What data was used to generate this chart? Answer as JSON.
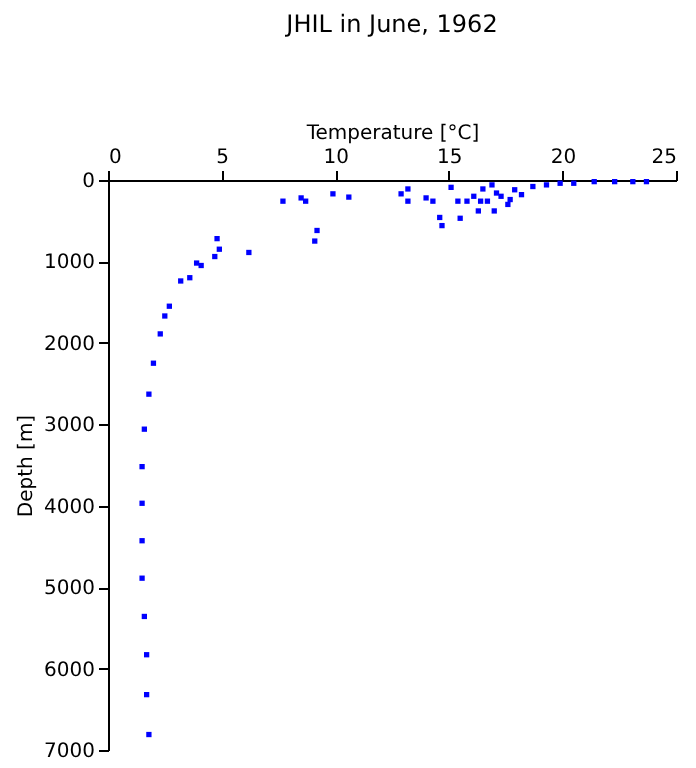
{
  "chart_data": {
    "type": "scatter",
    "title": "JHIL in June, 1962",
    "xlabel": "Temperature [°C]",
    "ylabel": "Depth [m]",
    "x": [
      1.8,
      1.7,
      1.7,
      1.6,
      1.5,
      1.5,
      1.5,
      1.5,
      1.6,
      1.8,
      2,
      2.3,
      2.5,
      2.7,
      3.2,
      3.6,
      3.9,
      4.1,
      4.7,
      4.8,
      4.9,
      6.2,
      7.7,
      8.5,
      8.7,
      9.1,
      9.2,
      9.9,
      10.6,
      12.9,
      13.2,
      13.2,
      14,
      14.3,
      14.6,
      14.7,
      15.1,
      15.5,
      15.4,
      16.3,
      17,
      16.5,
      16.9,
      16.7,
      17.6,
      17.9,
      18.2,
      18.7,
      19.3,
      19.9,
      20.5,
      21.4,
      22.3,
      23.1,
      23.7,
      17.3,
      16.4,
      17.7,
      17.1,
      16.1,
      15.8
    ],
    "series": [
      {
        "color": "#0000ff",
        "values": [
          6810,
          6320,
          5830,
          5360,
          4890,
          4430,
          3970,
          3520,
          3060,
          2630,
          2250,
          1890,
          1670,
          1550,
          1240,
          1200,
          1020,
          1050,
          940,
          720,
          850,
          890,
          260,
          220,
          260,
          750,
          620,
          170,
          210,
          170,
          260,
          110,
          220,
          260,
          460,
          560,
          90,
          470,
          260,
          380,
          380,
          110,
          60,
          260,
          300,
          120,
          180,
          80,
          60,
          40,
          40,
          20,
          20,
          20,
          20,
          200,
          260,
          240,
          160,
          200,
          260
        ]
      }
    ],
    "xlim": [
      0,
      25
    ],
    "xticks": [
      0,
      5,
      10,
      15,
      20,
      25
    ],
    "ylim": [
      7000,
      0
    ],
    "yticks": [
      0,
      1000,
      2000,
      3000,
      4000,
      5000,
      6000,
      7000
    ],
    "marker": "square",
    "grid": false
  }
}
